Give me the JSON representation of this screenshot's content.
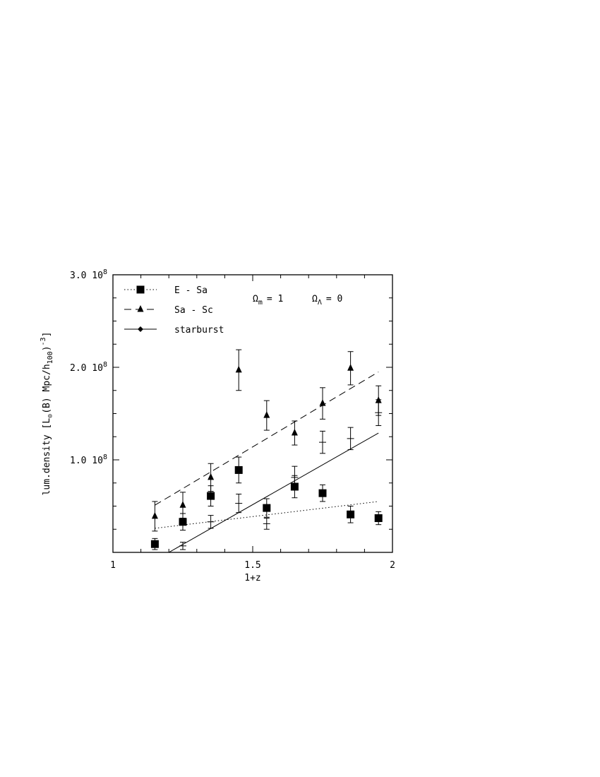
{
  "chart_data": {
    "type": "scatter",
    "xlabel": "1+z",
    "ylabel": {
      "prefix": "lum.density [L",
      "sun_sub": "⊙",
      "mid": "(B) Mpc/h",
      "h_sub": "100",
      "suffix": ")",
      "exp": "-3",
      "close": "]"
    },
    "annotation": {
      "omega1": "Ω",
      "omega1_sub": "m",
      "omega1_val": "= 1",
      "omega2": "Ω",
      "omega2_sub": "Λ",
      "omega2_val": "= 0"
    },
    "xlim": [
      1,
      2
    ],
    "ylim": [
      0,
      300000000.0
    ],
    "x_ticks": [
      {
        "value": 1,
        "label": "1"
      },
      {
        "value": 1.5,
        "label": "1.5"
      },
      {
        "value": 2,
        "label": "2"
      }
    ],
    "y_ticks": [
      {
        "value": 100000000.0,
        "label": "1.0 10",
        "exp": "8"
      },
      {
        "value": 200000000.0,
        "label": "2.0 10",
        "exp": "8"
      },
      {
        "value": 300000000.0,
        "label": "3.0 10",
        "exp": "8"
      }
    ],
    "series": [
      {
        "name": "E - Sa",
        "marker": "square",
        "line_style": "dotted",
        "points": [
          {
            "x": 1.15,
            "y": 9000000.0,
            "err": 6000000.0
          },
          {
            "x": 1.25,
            "y": 33000000.0,
            "err": 9000000.0
          },
          {
            "x": 1.35,
            "y": 61000000.0,
            "err": 11000000.0
          },
          {
            "x": 1.45,
            "y": 89000000.0,
            "err": 14000000.0
          },
          {
            "x": 1.55,
            "y": 48000000.0,
            "err": 10000000.0
          },
          {
            "x": 1.65,
            "y": 71000000.0,
            "err": 12000000.0
          },
          {
            "x": 1.75,
            "y": 64000000.0,
            "err": 9000000.0
          },
          {
            "x": 1.85,
            "y": 41000000.0,
            "err": 9000000.0
          },
          {
            "x": 1.95,
            "y": 37000000.0,
            "err": 7000000.0
          }
        ],
        "fit": [
          {
            "x": 1.15,
            "y": 26000000.0
          },
          {
            "x": 1.95,
            "y": 55000000.0
          }
        ]
      },
      {
        "name": "Sa - Sc",
        "marker": "triangle",
        "line_style": "dashed",
        "points": [
          {
            "x": 1.15,
            "y": 39000000.0,
            "err": 16000000.0
          },
          {
            "x": 1.25,
            "y": 51000000.0,
            "err": 14000000.0
          },
          {
            "x": 1.35,
            "y": 81000000.0,
            "err": 15000000.0
          },
          {
            "x": 1.45,
            "y": 197000000.0,
            "err": 22000000.0
          },
          {
            "x": 1.55,
            "y": 148000000.0,
            "err": 16000000.0
          },
          {
            "x": 1.65,
            "y": 129000000.0,
            "err": 13000000.0
          },
          {
            "x": 1.75,
            "y": 161000000.0,
            "err": 17000000.0
          },
          {
            "x": 1.85,
            "y": 199000000.0,
            "err": 18000000.0
          },
          {
            "x": 1.95,
            "y": 164000000.0,
            "err": 16000000.0
          }
        ],
        "fit": [
          {
            "x": 1.15,
            "y": 51000000.0
          },
          {
            "x": 1.95,
            "y": 195000000.0
          }
        ]
      },
      {
        "name": "starburst",
        "marker": "diamond",
        "line_style": "solid",
        "points": [
          {
            "x": 1.25,
            "y": 7000000.0,
            "err": 4000000.0
          },
          {
            "x": 1.35,
            "y": 33000000.0,
            "err": 7000000.0
          },
          {
            "x": 1.45,
            "y": 53000000.0,
            "err": 10000000.0
          },
          {
            "x": 1.55,
            "y": 31000000.0,
            "err": 6000000.0
          },
          {
            "x": 1.65,
            "y": 81000000.0,
            "err": 12000000.0
          },
          {
            "x": 1.75,
            "y": 119000000.0,
            "err": 12000000.0
          },
          {
            "x": 1.85,
            "y": 123000000.0,
            "err": 12000000.0
          },
          {
            "x": 1.95,
            "y": 151000000.0,
            "err": 14000000.0
          }
        ],
        "fit": [
          {
            "x": 1.2,
            "y": 0.0
          },
          {
            "x": 1.95,
            "y": 129000000.0
          }
        ]
      }
    ],
    "legend": {
      "placement": "top-left"
    },
    "grid": false
  }
}
